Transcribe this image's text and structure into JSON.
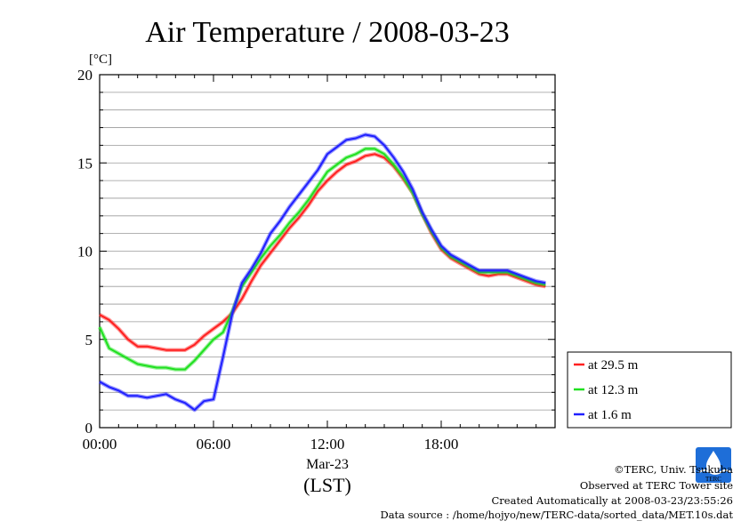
{
  "footer": {
    "credit": "©TERC, Univ. Tsukuba",
    "site": "Observed at TERC Tower site",
    "created": "Created Automatically at 2008-03-23/23:55:26",
    "source": "Data source : /home/hojyo/new/TERC-data/sorted_data/MET.10s.dat",
    "logo_text": "TERC"
  },
  "chart_data": {
    "type": "line",
    "title": "Air Temperature / 2008-03-23",
    "ylabel": "[°C]",
    "xlabel": "(LST)",
    "date_label": "Mar-23",
    "x_unit": "hour",
    "xlim": [
      0,
      24
    ],
    "ylim": [
      0,
      20
    ],
    "x_ticks": [
      {
        "value": 0,
        "label": "00:00"
      },
      {
        "value": 6,
        "label": "06:00"
      },
      {
        "value": 12,
        "label": "12:00"
      },
      {
        "value": 18,
        "label": "18:00"
      }
    ],
    "y_ticks": [
      {
        "value": 0,
        "label": "0"
      },
      {
        "value": 5,
        "label": "5"
      },
      {
        "value": 10,
        "label": "10"
      },
      {
        "value": 15,
        "label": "15"
      },
      {
        "value": 20,
        "label": "20"
      }
    ],
    "grid": "horizontal every 1 °C",
    "legend_position": "bottom-right, outside",
    "x": [
      0,
      0.5,
      1,
      1.5,
      2,
      2.5,
      3,
      3.5,
      4,
      4.5,
      5,
      5.5,
      6,
      6.5,
      7,
      7.5,
      8,
      8.5,
      9,
      9.5,
      10,
      10.5,
      11,
      11.5,
      12,
      12.5,
      13,
      13.5,
      14,
      14.5,
      15,
      15.5,
      16,
      16.5,
      17,
      17.5,
      18,
      18.5,
      19,
      19.5,
      20,
      20.5,
      21,
      21.5,
      22,
      22.5,
      23,
      23.5
    ],
    "series": [
      {
        "name": "at 29.5 m",
        "color": "#ff2020",
        "values": [
          6.4,
          6.1,
          5.6,
          5.0,
          4.6,
          4.6,
          4.5,
          4.4,
          4.4,
          4.4,
          4.7,
          5.2,
          5.6,
          6.0,
          6.5,
          7.3,
          8.3,
          9.2,
          9.9,
          10.6,
          11.3,
          11.9,
          12.6,
          13.4,
          14.0,
          14.5,
          14.9,
          15.1,
          15.4,
          15.5,
          15.3,
          14.8,
          14.1,
          13.3,
          12.1,
          11.0,
          10.1,
          9.6,
          9.3,
          9.0,
          8.7,
          8.6,
          8.7,
          8.7,
          8.5,
          8.3,
          8.1,
          8.0
        ]
      },
      {
        "name": "at 12.3 m",
        "color": "#20e020",
        "values": [
          5.7,
          4.5,
          4.2,
          3.9,
          3.6,
          3.5,
          3.4,
          3.4,
          3.3,
          3.3,
          3.8,
          4.4,
          5.0,
          5.4,
          6.6,
          8.0,
          8.8,
          9.6,
          10.3,
          10.9,
          11.6,
          12.2,
          12.9,
          13.7,
          14.5,
          14.9,
          15.3,
          15.5,
          15.8,
          15.8,
          15.5,
          14.9,
          14.2,
          13.3,
          12.1,
          11.1,
          10.2,
          9.7,
          9.4,
          9.1,
          8.8,
          8.8,
          8.8,
          8.8,
          8.6,
          8.4,
          8.2,
          8.1
        ]
      },
      {
        "name": "at 1.6 m",
        "color": "#2020ff",
        "values": [
          2.6,
          2.3,
          2.1,
          1.8,
          1.8,
          1.7,
          1.8,
          1.9,
          1.6,
          1.4,
          1.0,
          1.5,
          1.6,
          4.0,
          6.5,
          8.2,
          9.0,
          9.9,
          11.0,
          11.7,
          12.5,
          13.2,
          13.9,
          14.6,
          15.5,
          15.9,
          16.3,
          16.4,
          16.6,
          16.5,
          16.0,
          15.3,
          14.5,
          13.5,
          12.2,
          11.2,
          10.3,
          9.8,
          9.5,
          9.2,
          8.9,
          8.9,
          8.9,
          8.9,
          8.7,
          8.5,
          8.3,
          8.2
        ]
      }
    ]
  }
}
